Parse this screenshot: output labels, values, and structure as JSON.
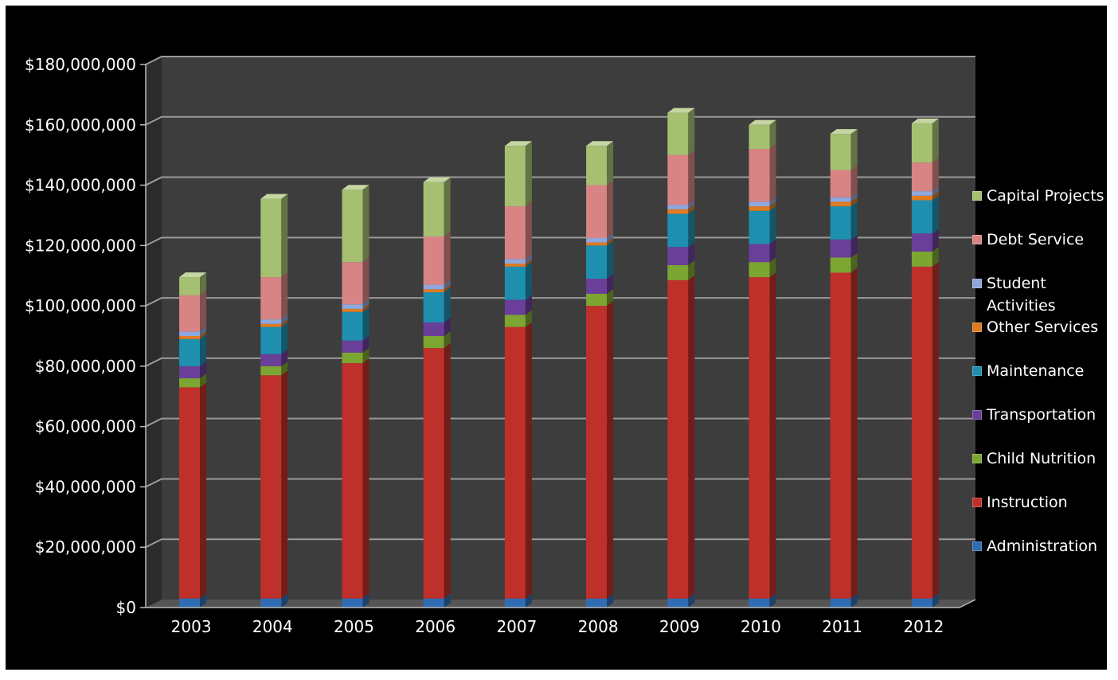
{
  "chart_data": {
    "type": "bar",
    "stacked": true,
    "title": "",
    "xlabel": "",
    "ylabel": "",
    "ylim": [
      0,
      180000000
    ],
    "yticks": [
      "$0",
      "$20,000,000",
      "$40,000,000",
      "$60,000,000",
      "$80,000,000",
      "$100,000,000",
      "$120,000,000",
      "$140,000,000",
      "$160,000,000",
      "$180,000,000"
    ],
    "grid": true,
    "legend_position": "right",
    "categories": [
      "2003",
      "2004",
      "2005",
      "2006",
      "2007",
      "2008",
      "2009",
      "2010",
      "2011",
      "2012"
    ],
    "series": [
      {
        "name": "Administration",
        "color": "#2f6cb3",
        "values": [
          3000000,
          3000000,
          3000000,
          3000000,
          3000000,
          3000000,
          3000000,
          3000000,
          3000000,
          3000000
        ]
      },
      {
        "name": "Instruction",
        "color": "#c0302a",
        "values": [
          70000000,
          74000000,
          78000000,
          83000000,
          90000000,
          97000000,
          105500000,
          106500000,
          108000000,
          110000000
        ]
      },
      {
        "name": "Child Nutrition",
        "color": "#7da531",
        "values": [
          3000000,
          3000000,
          3500000,
          4000000,
          4000000,
          4000000,
          5000000,
          5000000,
          5000000,
          5000000
        ]
      },
      {
        "name": "Transportation",
        "color": "#6a3f99",
        "values": [
          4000000,
          4000000,
          4000000,
          4500000,
          5000000,
          5000000,
          6000000,
          6000000,
          6000000,
          6000000
        ]
      },
      {
        "name": "Maintenance",
        "color": "#1f8fb0",
        "values": [
          9000000,
          9000000,
          9500000,
          10000000,
          11000000,
          11000000,
          11000000,
          11000000,
          11000000,
          11000000
        ]
      },
      {
        "name": "Other Services",
        "color": "#e07b22",
        "values": [
          1000000,
          1000000,
          1000000,
          1000000,
          1000000,
          1000000,
          1500000,
          1500000,
          1500000,
          1500000
        ]
      },
      {
        "name": "Student Activities",
        "color": "#8fa7dc",
        "values": [
          1500000,
          1500000,
          1500000,
          1500000,
          1500000,
          1500000,
          1500000,
          1500000,
          1500000,
          1500000
        ]
      },
      {
        "name": "Debt Service",
        "color": "#d98484",
        "values": [
          12000000,
          14000000,
          14000000,
          16000000,
          17500000,
          17500000,
          16500000,
          17500000,
          9000000,
          9500000
        ]
      },
      {
        "name": "Capital Projects",
        "color": "#a5c071",
        "values": [
          6000000,
          26000000,
          24000000,
          18000000,
          20000000,
          13000000,
          14000000,
          8000000,
          12000000,
          13000000
        ]
      }
    ],
    "legend_order": [
      "Capital Projects",
      "Debt Service",
      "Student Activities",
      "Other Services",
      "Maintenance",
      "Transportation",
      "Child Nutrition",
      "Instruction",
      "Administration"
    ]
  },
  "legend_labels": {
    "Capital Projects": "Capital Projects",
    "Debt Service": "Debt Service",
    "Student Activities": "Student\nActivities",
    "Other Services": "Other Services",
    "Maintenance": "Maintenance",
    "Transportation": "Transportation",
    "Child Nutrition": "Child Nutrition",
    "Instruction": "Instruction",
    "Administration": "Administration"
  },
  "colors": {
    "background": "#000000",
    "wall": "#3d3d3d",
    "gridline": "#9a9a9a",
    "text": "#ffffff"
  }
}
